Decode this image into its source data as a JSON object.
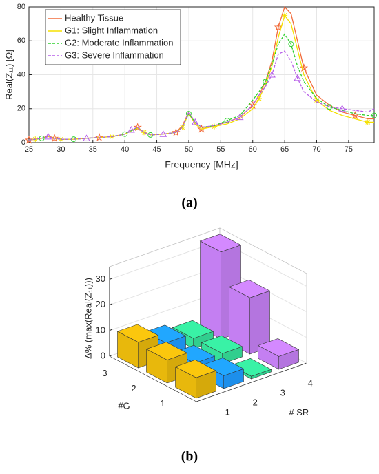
{
  "chart_data": [
    {
      "type": "line",
      "panel_label": "(a)",
      "xlabel": "Frequency [MHz]",
      "ylabel": "Real(Z₁₁) [Ω]",
      "xlim": [
        25,
        79
      ],
      "ylim": [
        0,
        80
      ],
      "xticks": [
        25,
        30,
        35,
        40,
        45,
        50,
        55,
        60,
        65,
        70,
        75
      ],
      "yticks": [
        0,
        20,
        40,
        60,
        80
      ],
      "grid": true,
      "legend": "upper-left",
      "x": [
        25,
        26,
        27,
        28,
        29,
        30,
        32,
        34,
        36,
        38,
        40,
        41,
        42,
        43,
        44,
        46,
        48,
        49,
        50,
        51,
        52,
        54,
        56,
        58,
        60,
        61,
        62,
        63,
        64,
        65,
        66,
        67,
        68,
        70,
        72,
        74,
        76,
        78,
        79
      ],
      "series": [
        {
          "name": "Healthy Tissue",
          "color": "#f26b3a",
          "marker": "star",
          "dash": false,
          "values": [
            1.5,
            2,
            2.5,
            4,
            2.5,
            2,
            2,
            2.5,
            3,
            3.5,
            5,
            7,
            9,
            6,
            4.5,
            5,
            6,
            10,
            18,
            11,
            8,
            10,
            12,
            15,
            22,
            28,
            36,
            48,
            68,
            80,
            76,
            60,
            44,
            28,
            22,
            18,
            16,
            14,
            14
          ]
        },
        {
          "name": "G1: Slight Inflammation",
          "color": "#f5e000",
          "marker": "asterisk",
          "dash": false,
          "values": [
            1.5,
            2,
            2.5,
            3.5,
            2.5,
            2,
            2,
            2.5,
            3,
            3.5,
            5,
            7,
            8.5,
            6,
            4.5,
            5,
            6,
            9,
            17,
            11,
            8,
            9.5,
            11,
            14,
            20,
            26,
            34,
            45,
            62,
            75,
            70,
            55,
            40,
            25,
            19,
            16,
            14,
            12,
            12
          ]
        },
        {
          "name": "G2: Moderate Inflammation",
          "color": "#2fd12f",
          "marker": "circle",
          "dash": true,
          "values": [
            1.5,
            2,
            2.5,
            3.5,
            2.5,
            2,
            2,
            2.5,
            3,
            3.5,
            5,
            7,
            9,
            6,
            4.5,
            5,
            6,
            9,
            17,
            12,
            9,
            10,
            13,
            16,
            25,
            30,
            36,
            46,
            58,
            64,
            58,
            45,
            36,
            26,
            21,
            19,
            17,
            16,
            16
          ]
        },
        {
          "name": "G3: Severe Inflammation",
          "color": "#b65ee8",
          "marker": "triangle",
          "dash": true,
          "values": [
            1.5,
            2,
            2.5,
            3.5,
            2.5,
            2,
            2,
            2.5,
            3,
            3.5,
            5,
            7.5,
            9,
            6,
            4.5,
            5,
            6,
            9,
            18,
            12,
            9,
            10,
            12,
            15,
            22,
            28,
            33,
            40,
            52,
            54,
            48,
            38,
            30,
            24,
            21,
            20,
            19,
            18,
            20
          ]
        }
      ]
    },
    {
      "type": "bar3d",
      "panel_label": "(b)",
      "xlabel": "# SR",
      "ylabel": "#G",
      "zlabel": "Δ% (max(Real(Z₁₁)))",
      "x_categories": [
        "1",
        "2",
        "3",
        "4"
      ],
      "y_categories": [
        "1",
        "2",
        "3"
      ],
      "colors": [
        "#e8b80c",
        "#1f9bff",
        "#35e09a",
        "#c47ff2"
      ],
      "zlim": [
        0,
        35
      ],
      "zticks": [
        0,
        10,
        20,
        30
      ],
      "grid": true,
      "values": [
        [
          8,
          9,
          10
        ],
        [
          5,
          4,
          6
        ],
        [
          1,
          4,
          4
        ],
        [
          5,
          22,
          34
        ]
      ]
    }
  ]
}
